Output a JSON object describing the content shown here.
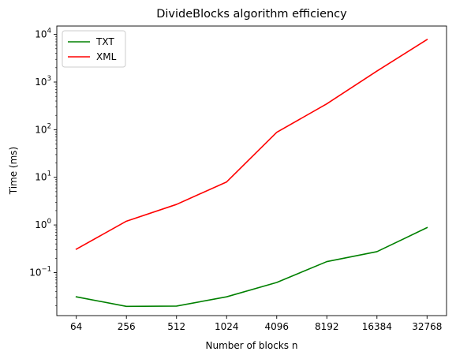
{
  "chart_data": {
    "type": "line",
    "title": "DivideBlocks algorithm efficiency",
    "xlabel": "Number of blocks n",
    "ylabel": "Time (ms)",
    "x_scale": "categorical",
    "y_scale": "log",
    "ylim": [
      0.0125,
      15000
    ],
    "categories": [
      "64",
      "256",
      "512",
      "1024",
      "4096",
      "8192",
      "16384",
      "32768"
    ],
    "y_ticks": [
      {
        "value": 0.1,
        "base": "10",
        "exp": "−1"
      },
      {
        "value": 1,
        "base": "10",
        "exp": "0"
      },
      {
        "value": 10,
        "base": "10",
        "exp": "1"
      },
      {
        "value": 100,
        "base": "10",
        "exp": "2"
      },
      {
        "value": 1000,
        "base": "10",
        "exp": "3"
      },
      {
        "value": 10000,
        "base": "10",
        "exp": "4"
      }
    ],
    "grid": false,
    "legend_position": "top-left",
    "series": [
      {
        "name": "TXT",
        "color": "#008000",
        "values": [
          0.031,
          0.0195,
          0.0198,
          0.031,
          0.062,
          0.17,
          0.275,
          0.88
        ]
      },
      {
        "name": "XML",
        "color": "#ff0000",
        "values": [
          0.31,
          1.2,
          2.7,
          8.0,
          88,
          350,
          1700,
          7800
        ]
      }
    ]
  }
}
